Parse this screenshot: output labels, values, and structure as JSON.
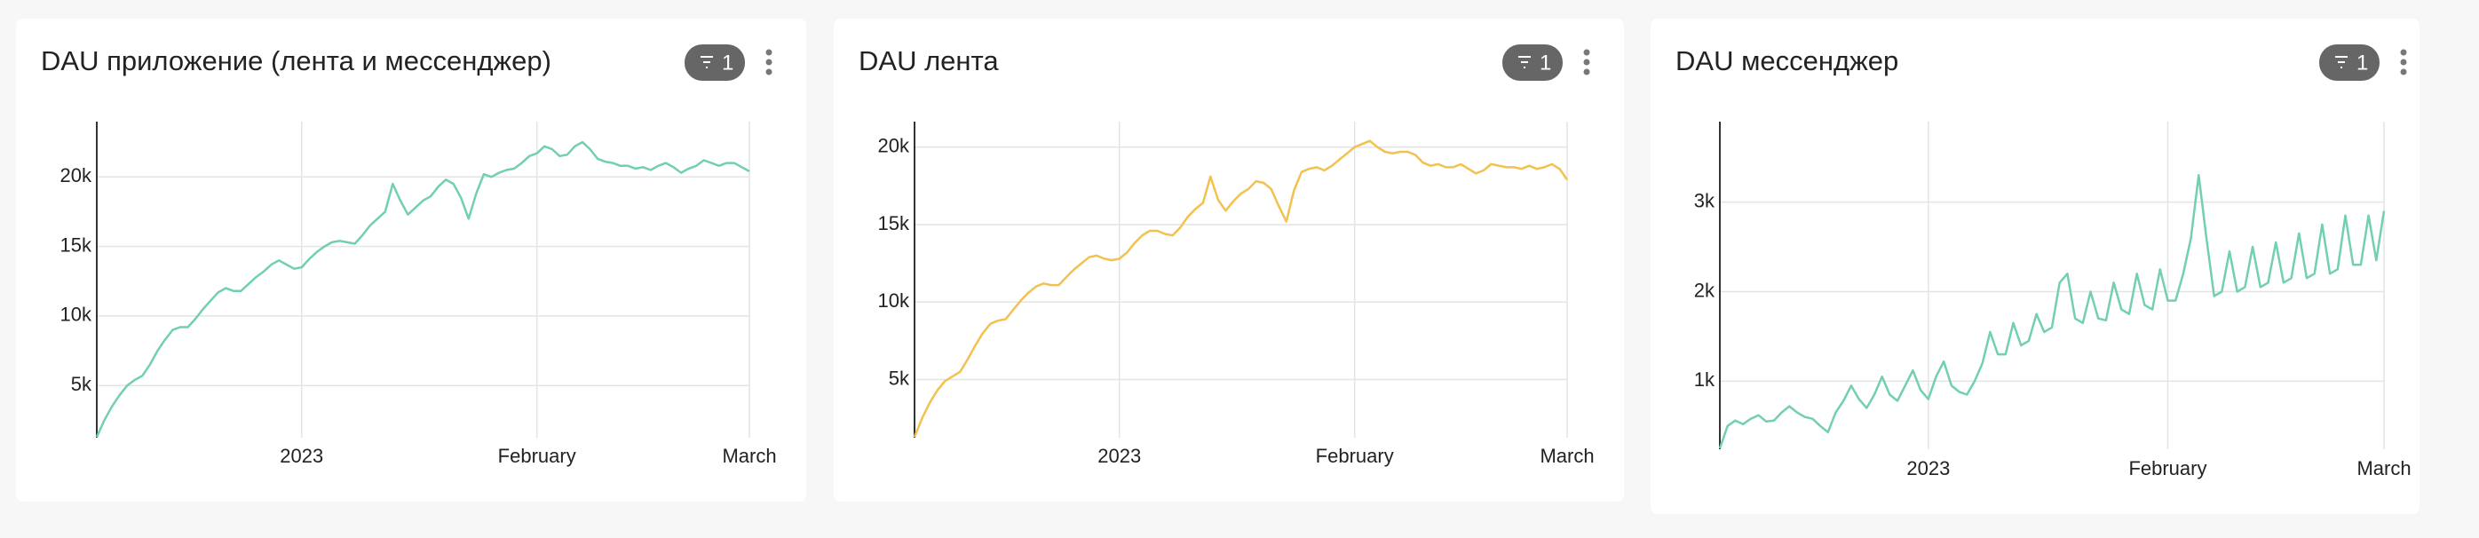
{
  "chart_data": [
    {
      "type": "line",
      "title": "DAU приложение (лента и мессенджер)",
      "filter_count": 1,
      "color": "#72cfb0",
      "categories": [
        null,
        null,
        null,
        null,
        null,
        null,
        null,
        null,
        null,
        null,
        null,
        null,
        null,
        null,
        null,
        null,
        null,
        null,
        null,
        null,
        null,
        null,
        null,
        null,
        null,
        null,
        null,
        "2023",
        null,
        null,
        null,
        null,
        null,
        null,
        null,
        null,
        null,
        null,
        null,
        null,
        null,
        null,
        null,
        null,
        null,
        null,
        null,
        null,
        null,
        null,
        null,
        null,
        null,
        null,
        null,
        null,
        null,
        null,
        "February",
        null,
        null,
        null,
        null,
        null,
        null,
        null,
        null,
        null,
        null,
        null,
        null,
        null,
        null,
        null,
        null,
        null,
        null,
        null,
        null,
        null,
        null,
        null,
        null,
        null,
        null,
        null,
        "March"
      ],
      "values": [
        1300,
        2500,
        3500,
        4300,
        5000,
        5400,
        5700,
        6500,
        7500,
        8300,
        9000,
        9200,
        9200,
        9800,
        10500,
        11100,
        11700,
        12000,
        11800,
        11800,
        12300,
        12800,
        13200,
        13700,
        14000,
        13700,
        13400,
        13500,
        14100,
        14600,
        15000,
        15300,
        15400,
        15300,
        15200,
        15800,
        16500,
        17000,
        17500,
        19500,
        18300,
        17300,
        17800,
        18300,
        18600,
        19300,
        19800,
        19500,
        18500,
        17000,
        18800,
        20200,
        20000,
        20300,
        20500,
        20600,
        21000,
        21500,
        21700,
        22200,
        22000,
        21500,
        21600,
        22200,
        22500,
        22000,
        21300,
        21100,
        21000,
        20800,
        20800,
        20600,
        20700,
        20500,
        20800,
        21000,
        20700,
        20300,
        20600,
        20800,
        21200,
        21000,
        20800,
        21000,
        21000,
        20700,
        20400
      ],
      "ylim": [
        1250,
        22700
      ],
      "yticks": [
        {
          "value": 5000,
          "label": "5k"
        },
        {
          "value": 10000,
          "label": "10k"
        },
        {
          "value": 15000,
          "label": "15k"
        },
        {
          "value": 20000,
          "label": "20k"
        }
      ],
      "grid": true
    },
    {
      "type": "line",
      "title": "DAU лента",
      "filter_count": 1,
      "color": "#f2c14e",
      "categories": [
        null,
        null,
        null,
        null,
        null,
        null,
        null,
        null,
        null,
        null,
        null,
        null,
        null,
        null,
        null,
        null,
        null,
        null,
        null,
        null,
        null,
        null,
        null,
        null,
        null,
        null,
        null,
        "2023",
        null,
        null,
        null,
        null,
        null,
        null,
        null,
        null,
        null,
        null,
        null,
        null,
        null,
        null,
        null,
        null,
        null,
        null,
        null,
        null,
        null,
        null,
        null,
        null,
        null,
        null,
        null,
        null,
        null,
        null,
        "February",
        null,
        null,
        null,
        null,
        null,
        null,
        null,
        null,
        null,
        null,
        null,
        null,
        null,
        null,
        null,
        null,
        null,
        null,
        null,
        null,
        null,
        null,
        null,
        null,
        null,
        null,
        null,
        "March"
      ],
      "values": [
        1300,
        2500,
        3500,
        4300,
        4900,
        5200,
        5500,
        6300,
        7200,
        8000,
        8600,
        8800,
        8900,
        9500,
        10100,
        10600,
        11000,
        11200,
        11100,
        11100,
        11600,
        12100,
        12500,
        12900,
        13000,
        12800,
        12700,
        12800,
        13200,
        13800,
        14300,
        14600,
        14600,
        14400,
        14300,
        14800,
        15500,
        16000,
        16400,
        18100,
        16600,
        15900,
        16500,
        17000,
        17300,
        17800,
        17700,
        17300,
        16200,
        15200,
        17200,
        18400,
        18600,
        18700,
        18500,
        18800,
        19200,
        19600,
        20000,
        20200,
        20400,
        20000,
        19700,
        19600,
        19700,
        19700,
        19500,
        19000,
        18800,
        18900,
        18700,
        18700,
        18900,
        18600,
        18300,
        18500,
        18900,
        18800,
        18700,
        18700,
        18600,
        18800,
        18600,
        18700,
        18900,
        18600,
        17900
      ],
      "ylim": [
        1250,
        20500
      ],
      "yticks": [
        {
          "value": 5000,
          "label": "5k"
        },
        {
          "value": 10000,
          "label": "10k"
        },
        {
          "value": 15000,
          "label": "15k"
        },
        {
          "value": 20000,
          "label": "20k"
        }
      ],
      "grid": true
    },
    {
      "type": "line",
      "title": "DAU мессенджер",
      "filter_count": 1,
      "color": "#72cfb0",
      "categories": [
        null,
        null,
        null,
        null,
        null,
        null,
        null,
        null,
        null,
        null,
        null,
        null,
        null,
        null,
        null,
        null,
        null,
        null,
        null,
        null,
        null,
        null,
        null,
        null,
        null,
        null,
        null,
        "2023",
        null,
        null,
        null,
        null,
        null,
        null,
        null,
        null,
        null,
        null,
        null,
        null,
        null,
        null,
        null,
        null,
        null,
        null,
        null,
        null,
        null,
        null,
        null,
        null,
        null,
        null,
        null,
        null,
        null,
        null,
        "February",
        null,
        null,
        null,
        null,
        null,
        null,
        null,
        null,
        null,
        null,
        null,
        null,
        null,
        null,
        null,
        null,
        null,
        null,
        null,
        null,
        null,
        null,
        null,
        null,
        null,
        null,
        null,
        "March"
      ],
      "values": [
        250,
        500,
        560,
        520,
        580,
        620,
        550,
        560,
        650,
        720,
        650,
        600,
        580,
        500,
        430,
        650,
        780,
        950,
        800,
        700,
        850,
        1050,
        850,
        780,
        950,
        1120,
        900,
        800,
        1050,
        1220,
        950,
        880,
        850,
        1000,
        1200,
        1550,
        1300,
        1300,
        1650,
        1400,
        1450,
        1750,
        1550,
        1600,
        2100,
        2200,
        1700,
        1650,
        2000,
        1700,
        1680,
        2100,
        1800,
        1750,
        2200,
        1850,
        1800,
        2250,
        1900,
        1900,
        2200,
        2600,
        3300,
        2600,
        1950,
        2000,
        2450,
        2000,
        2050,
        2500,
        2050,
        2100,
        2550,
        2100,
        2150,
        2650,
        2150,
        2200,
        2750,
        2200,
        2250,
        2850,
        2300,
        2300,
        2850,
        2350,
        2900
      ],
      "ylim": [
        240,
        3700
      ],
      "yticks": [
        {
          "value": 1000,
          "label": "1k"
        },
        {
          "value": 2000,
          "label": "2k"
        },
        {
          "value": 3000,
          "label": "3k"
        }
      ],
      "grid": true
    }
  ]
}
